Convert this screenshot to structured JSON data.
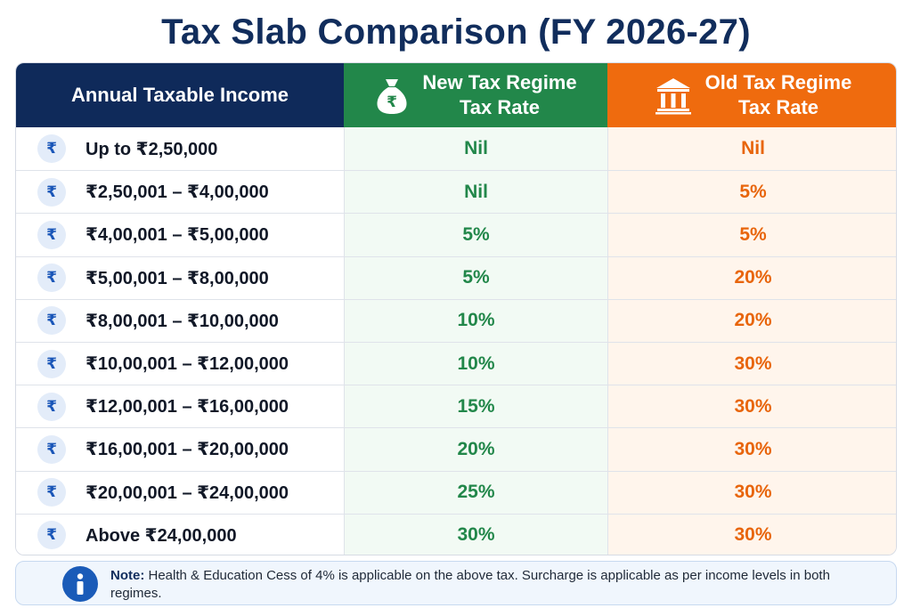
{
  "title": "Tax Slab Comparison (FY 2026-27)",
  "columns": {
    "income": "Annual Taxable Income",
    "new_line1": "New Tax Regime",
    "new_line2": "Tax Rate",
    "old_line1": "Old Tax Regime",
    "old_line2": "Tax Rate"
  },
  "icons": {
    "row_badge": "rupee-icon",
    "new_header": "money-bag-icon",
    "old_header": "bank-building-icon",
    "note": "info-icon"
  },
  "badge_symbol": "₹",
  "rows": [
    {
      "income": "Up to ₹2,50,000",
      "new": "Nil",
      "old": "Nil"
    },
    {
      "income": "₹2,50,001 – ₹4,00,000",
      "new": "Nil",
      "old": "5%"
    },
    {
      "income": "₹4,00,001 – ₹5,00,000",
      "new": "5%",
      "old": "5%"
    },
    {
      "income": "₹5,00,001 – ₹8,00,000",
      "new": "5%",
      "old": "20%"
    },
    {
      "income": "₹8,00,001 – ₹10,00,000",
      "new": "10%",
      "old": "20%"
    },
    {
      "income": "₹10,00,001 – ₹12,00,000",
      "new": "10%",
      "old": "30%"
    },
    {
      "income": "₹12,00,001 – ₹16,00,000",
      "new": "15%",
      "old": "30%"
    },
    {
      "income": "₹16,00,001 – ₹20,00,000",
      "new": "20%",
      "old": "30%"
    },
    {
      "income": "₹20,00,001 – ₹24,00,000",
      "new": "25%",
      "old": "30%"
    },
    {
      "income": "Above ₹24,00,000",
      "new": "30%",
      "old": "30%"
    }
  ],
  "note": {
    "label": "Note:",
    "text": "Health & Education Cess of 4% is applicable on the above tax. Surcharge is applicable as per income levels in both regimes."
  },
  "colors": {
    "navy": "#0f2a5a",
    "green": "#22874a",
    "orange": "#ef6b0e",
    "info_blue": "#1a5bb8"
  }
}
